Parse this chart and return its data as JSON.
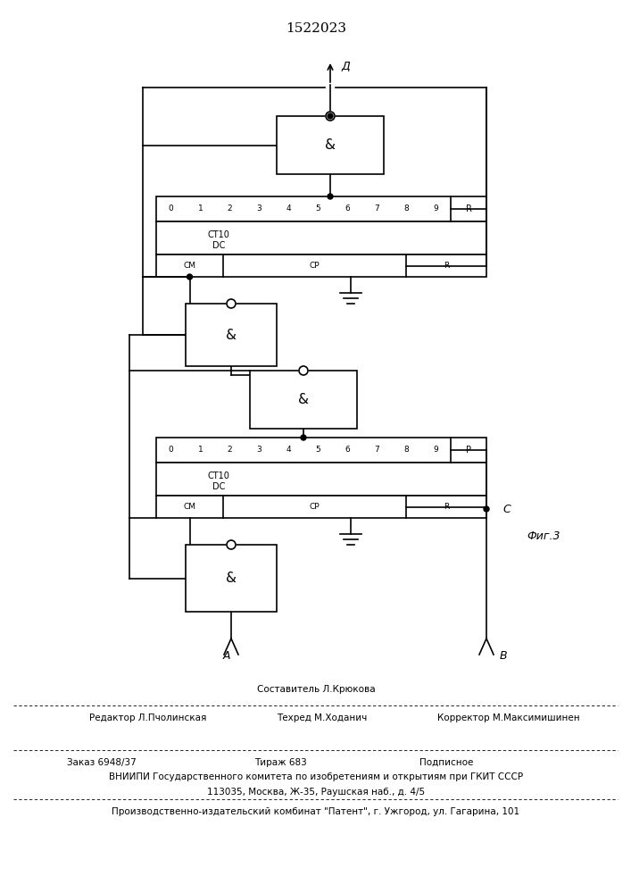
{
  "title": "1522023",
  "fig_label": "Фиг.3",
  "background_color": "#ffffff",
  "line_color": "#000000",
  "line_width": 1.2,
  "footer": {
    "line1_center": "Составитель Л.Крюкова",
    "line2_left": "Редактор Л.Пчолинская",
    "line2_center": "Техред М.Ходанич",
    "line2_right": "Корректор М.Максимишинен",
    "line3_left": "Заказ 6948/37",
    "line3_center": "Тираж 683",
    "line3_right": "Подписное",
    "line4": "ВНИИПИ Государственного комитета по изобретениям и открытиям при ГКИТ СССР",
    "line5": "113035, Москва, Ж-35, Раушская наб., д. 4/5",
    "line6": "Производственно-издательский комбинат \"Патент\", г. Ужгород, ул. Гагарина, 101"
  }
}
